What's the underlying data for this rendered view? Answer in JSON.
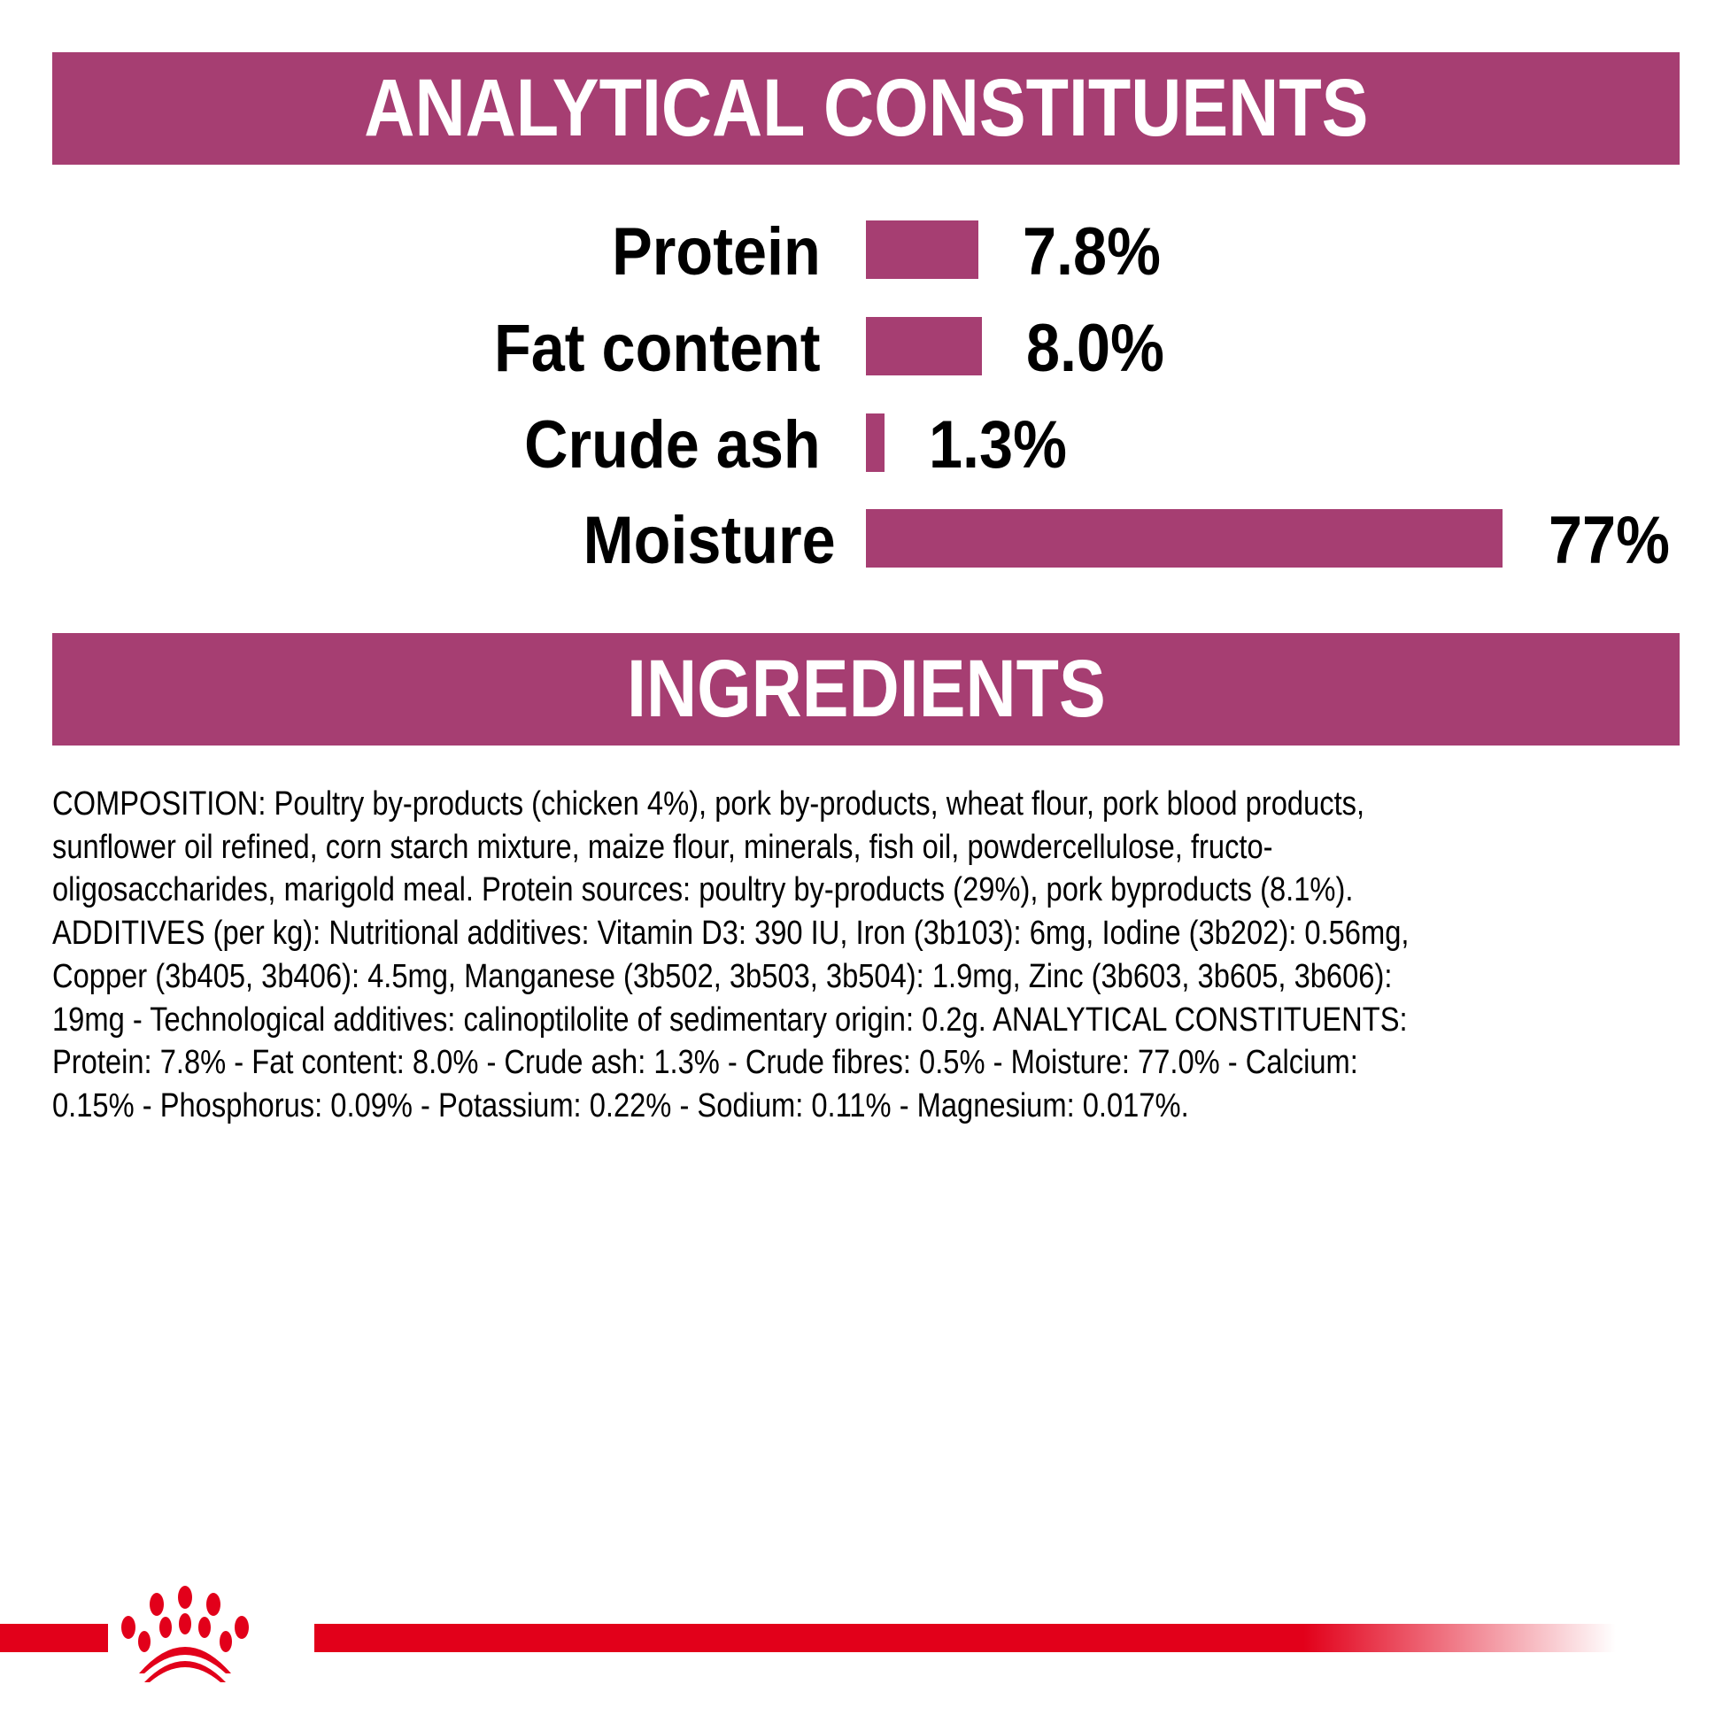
{
  "colors": {
    "accent": "#a63e72",
    "brand_red": "#e2001a"
  },
  "analytical": {
    "title": "ANALYTICAL CONSTITUENTS",
    "rows": [
      {
        "label": "Protein",
        "value": 7.8,
        "value_label": "7.8%"
      },
      {
        "label": "Fat content",
        "value": 8.0,
        "value_label": "8.0%"
      },
      {
        "label": "Crude ash",
        "value": 1.3,
        "value_label": "1.3%"
      },
      {
        "label": "Moisture",
        "value": 77,
        "value_label": "77%"
      }
    ]
  },
  "ingredients": {
    "title": "INGREDIENTS",
    "lines": [
      "COMPOSITION: Poultry by-products (chicken 4%), pork by-products, wheat flour, pork blood products,",
      "sunflower oil refined, corn starch mixture, maize flour, minerals, fish oil, powdercellulose, fructo-",
      "oligosaccharides, marigold meal. Protein sources: poultry by-products (29%), pork byproducts (8.1%).",
      "ADDITIVES (per kg): Nutritional additives: Vitamin D3: 390 IU, Iron (3b103): 6mg, Iodine (3b202): 0.56mg,",
      "Copper (3b405, 3b406): 4.5mg, Manganese (3b502, 3b503, 3b504): 1.9mg, Zinc (3b603, 3b605, 3b606):",
      "19mg - Technological additives: calinoptilolite of sedimentary origin: 0.2g. ANALYTICAL CONSTITUENTS:",
      "Protein: 7.8% - Fat content: 8.0% - Crude ash: 1.3% - Crude fibres: 0.5% - Moisture: 77.0% - Calcium:",
      "0.15% - Phosphorus: 0.09% - Potassium: 0.22% - Sodium: 0.11% - Magnesium: 0.017%."
    ]
  },
  "footer": {
    "logo": "royal-canin-crown-logo",
    "logo_text": "Royal Canin"
  }
}
